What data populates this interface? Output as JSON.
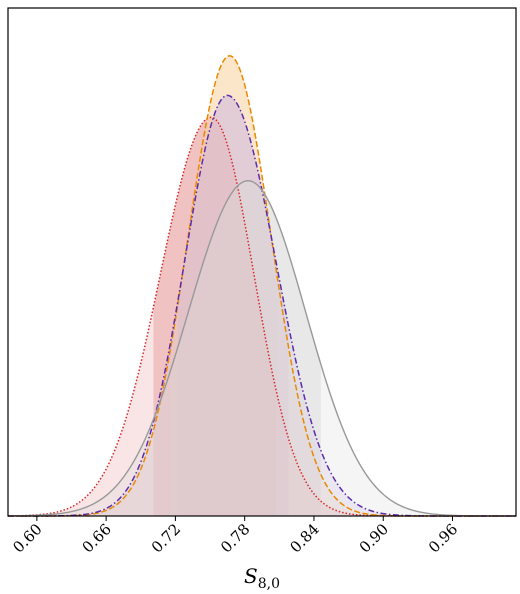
{
  "chart_data": {
    "type": "area",
    "title": "",
    "xlabel": {
      "main": "S",
      "sub": "8,0"
    },
    "ylabel": "",
    "xlim": [
      0.575,
      1.015
    ],
    "ylim": [
      0,
      1.0
    ],
    "xticks": [
      "0.60",
      "0.66",
      "0.72",
      "0.78",
      "0.84",
      "0.90",
      "0.96"
    ],
    "grid": false,
    "legend": "none",
    "series": [
      {
        "style": "dotted",
        "color": "#d62728",
        "fill_color": "#e8a0a0",
        "peak_x": 0.751,
        "peak_y": 0.785,
        "sigma_left": 0.044,
        "sigma_right": 0.037,
        "band": [
          0.701,
          0.807
        ]
      },
      {
        "style": "dashed",
        "color": "#e88a00",
        "fill_color": "#fbd9ad",
        "peak_x": 0.767,
        "peak_y": 0.906,
        "sigma_left": 0.036,
        "sigma_right": 0.036,
        "band": [
          0.719,
          0.809
        ]
      },
      {
        "style": "dashdot",
        "color": "#5b2cae",
        "fill_color": "#cdbce6",
        "peak_x": 0.765,
        "peak_y": 0.828,
        "sigma_left": 0.037,
        "sigma_right": 0.042,
        "band": [
          0.722,
          0.818
        ]
      },
      {
        "style": "solid",
        "color": "#999999",
        "fill_color": "#dcdcdc",
        "peak_x": 0.783,
        "peak_y": 0.66,
        "sigma_left": 0.052,
        "sigma_right": 0.05,
        "band": [
          0.716,
          0.846
        ]
      }
    ]
  }
}
